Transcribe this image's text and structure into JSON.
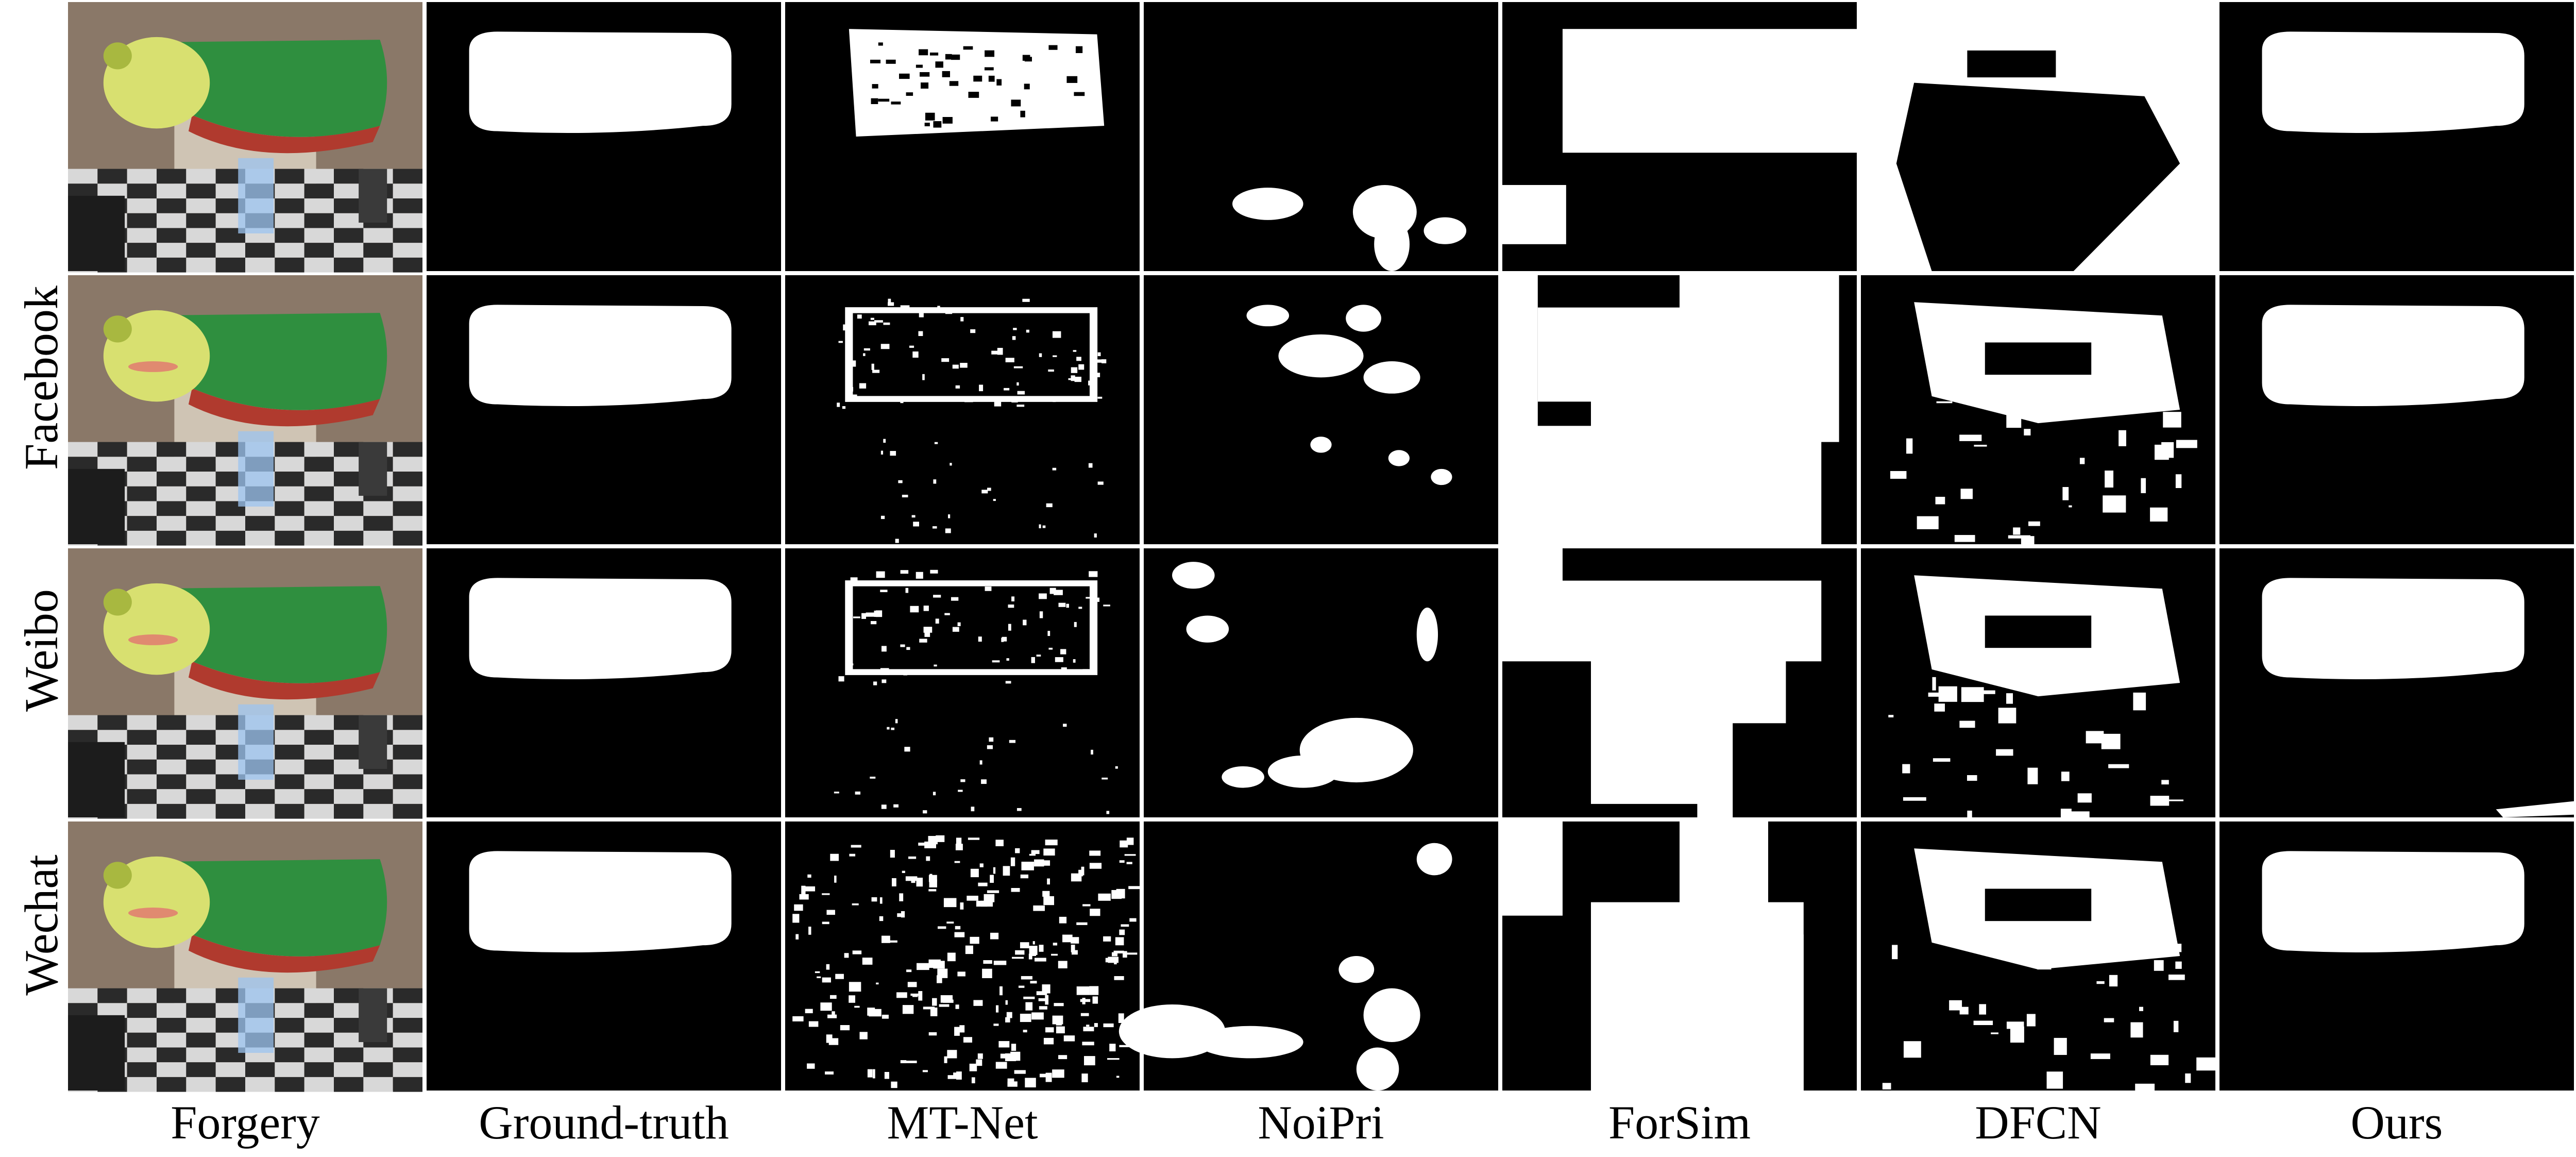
{
  "figure": {
    "column_labels": [
      "Forgery",
      "Ground-truth",
      "MT-Net",
      "NoiPri",
      "ForSim",
      "DFCN",
      "Ours"
    ],
    "row_labels": [
      "",
      "Facebook",
      "Weibo",
      "Wechat"
    ],
    "colors": {
      "mask_bg": "#000000",
      "mask_fg": "#ffffff",
      "separator": "#ffffff",
      "photo_wall": "#8a7868",
      "photo_floor_dark": "#2a2a2a",
      "photo_floor_light": "#d8d8d8",
      "forgery_green": "#2f8f3f",
      "forgery_yellow": "#d8e070",
      "forgery_red": "#b03a2e",
      "light_blue": "#9cc4f0"
    }
  }
}
